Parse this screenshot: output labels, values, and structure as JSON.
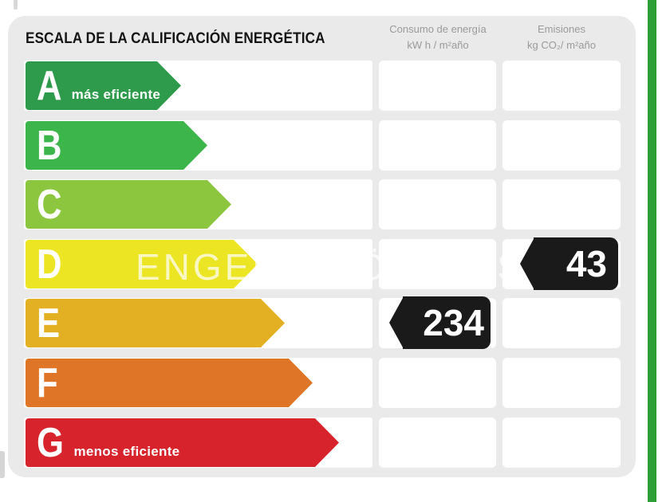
{
  "title": "ESCALA DE LA CALIFICACIÓN ENERGÉTICA",
  "columns": [
    {
      "id": "consumo",
      "line1": "Consumo de energía",
      "line2": "kW h / m²año"
    },
    {
      "id": "emisiones",
      "line1": "Emisiones",
      "line2": "kg CO₂/ m²año"
    }
  ],
  "ratings": [
    {
      "letter": "A",
      "sublabel": "más eficiente",
      "color": "#2d9b4b"
    },
    {
      "letter": "B",
      "sublabel": "",
      "color": "#3cb54a"
    },
    {
      "letter": "C",
      "sublabel": "",
      "color": "#8cc63f"
    },
    {
      "letter": "D",
      "sublabel": "",
      "color": "#ece524"
    },
    {
      "letter": "E",
      "sublabel": "",
      "color": "#e4b023"
    },
    {
      "letter": "F",
      "sublabel": "",
      "color": "#df7627"
    },
    {
      "letter": "G",
      "sublabel": "menos eficiente",
      "color": "#d7232b"
    }
  ],
  "values": {
    "consumo": {
      "value": "234",
      "row": "E"
    },
    "emisiones": {
      "value": "43",
      "row": "D"
    }
  },
  "watermark": "ENGEL & VÖLKERS",
  "accent_colors": {
    "side_stripe": "#2e9e36",
    "card_background": "#eaeaea",
    "badge_background": "#1a1a1a",
    "header_text": "#9a9a9a",
    "title_text": "#141414"
  },
  "chart_data": {
    "type": "bar",
    "title": "ESCALA DE LA CALIFICACIÓN ENERGÉTICA",
    "categories": [
      "A",
      "B",
      "C",
      "D",
      "E",
      "F",
      "G"
    ],
    "bar_colors": [
      "#2d9b4b",
      "#3cb54a",
      "#8cc63f",
      "#ece524",
      "#e4b023",
      "#df7627",
      "#d7232b"
    ],
    "bar_relative_lengths": [
      195,
      228,
      258,
      291,
      325,
      360,
      393
    ],
    "annotations": {
      "A": "más eficiente",
      "G": "menos eficiente"
    },
    "columns": [
      "Consumo de energía kW h / m²año",
      "Emisiones kg CO₂/ m²año"
    ],
    "series": [
      {
        "name": "Consumo de energía (kW h / m²año)",
        "value": 234,
        "rating": "E"
      },
      {
        "name": "Emisiones (kg CO₂/ m²año)",
        "value": 43,
        "rating": "D"
      }
    ],
    "legend_position": "none",
    "grid": false
  }
}
